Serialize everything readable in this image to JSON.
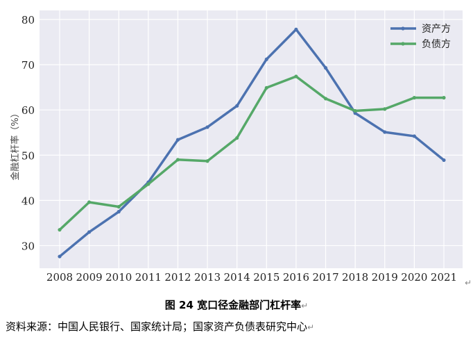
{
  "chart_data": {
    "type": "line",
    "title": "",
    "xlabel": "",
    "ylabel": "金融杠杆率（%）",
    "ylim": [
      25,
      82
    ],
    "yticks": [
      30,
      40,
      50,
      60,
      70,
      80
    ],
    "x": [
      "2008",
      "2009",
      "2010",
      "2011",
      "2012",
      "2013",
      "2014",
      "2015",
      "2016",
      "2017",
      "2018",
      "2019",
      "2020",
      "2021"
    ],
    "grid": true,
    "legend_position": "top-right",
    "series": [
      {
        "name": "资产方",
        "color": "#4c72b0",
        "values": [
          27.6,
          33.0,
          37.5,
          44.0,
          53.4,
          56.2,
          60.9,
          71.2,
          77.8,
          69.3,
          59.3,
          55.1,
          54.2,
          48.9
        ]
      },
      {
        "name": "负债方",
        "color": "#55a868",
        "values": [
          33.5,
          39.6,
          38.6,
          43.6,
          49.0,
          48.7,
          53.8,
          64.9,
          67.4,
          62.5,
          59.8,
          60.2,
          62.7,
          62.7
        ]
      }
    ]
  },
  "caption": "图 24 宽口径金融部门杠杆率",
  "source": "资料来源：中国人民银行、国家统计局；国家资产负债表研究中心"
}
